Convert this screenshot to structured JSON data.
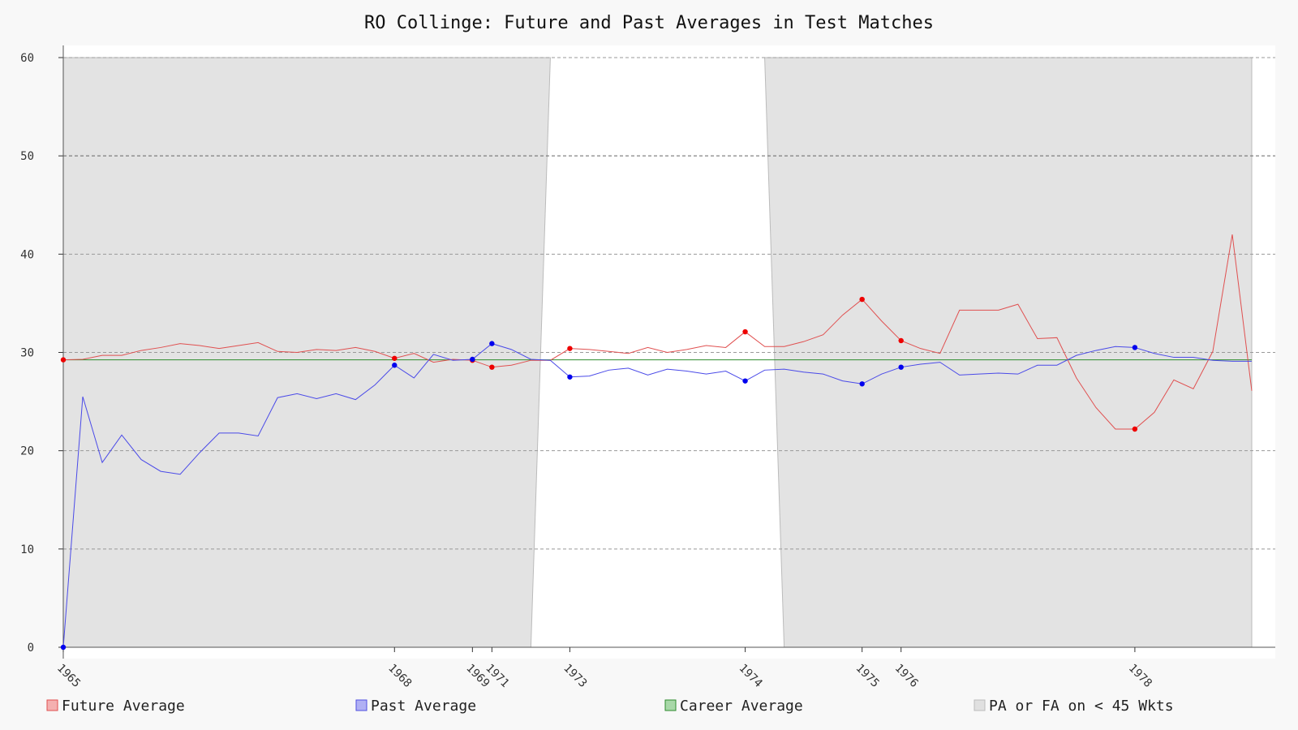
{
  "colors": {
    "future": "#e05050",
    "future_marker": "#ee0000",
    "past": "#4a4ae8",
    "past_marker": "#0000ee",
    "career": "#2e8b2e",
    "shade": "#e3e3e3",
    "background": "#f8f8f8",
    "plot_background": "#ffffff"
  },
  "chart_data": {
    "type": "line",
    "title": "RO Collinge: Future and Past Averages in Test Matches",
    "xlabel": "",
    "ylabel": "",
    "ylim": [
      0,
      60
    ],
    "xlim": [
      0,
      61
    ],
    "yticks": [
      0,
      10,
      20,
      30,
      40,
      50,
      60
    ],
    "grid": true,
    "legend_position": "bottom",
    "x_ticks": [
      {
        "x": 0,
        "label": "1965"
      },
      {
        "x": 17,
        "label": "1968"
      },
      {
        "x": 21,
        "label": "1969"
      },
      {
        "x": 22,
        "label": "1971"
      },
      {
        "x": 26,
        "label": "1973"
      },
      {
        "x": 35,
        "label": "1974"
      },
      {
        "x": 41,
        "label": "1975"
      },
      {
        "x": 43,
        "label": "1976"
      },
      {
        "x": 55,
        "label": "1978"
      }
    ],
    "legend": [
      {
        "key": "future",
        "label": "Future Average"
      },
      {
        "key": "past",
        "label": "Past Average"
      },
      {
        "key": "career",
        "label": "Career Average"
      },
      {
        "key": "shade",
        "label": "PA or FA on < 45 Wkts"
      }
    ],
    "career_average": 29.25,
    "series": [
      {
        "key": "future",
        "name": "Future Average",
        "values": [
          29.25,
          29.3,
          29.7,
          29.7,
          30.2,
          30.5,
          30.9,
          30.7,
          30.4,
          30.7,
          31.0,
          30.1,
          30.0,
          30.3,
          30.2,
          30.5,
          30.1,
          29.4,
          29.9,
          29.0,
          29.3,
          29.2,
          28.5,
          28.7,
          29.2,
          29.2,
          30.4,
          30.3,
          30.1,
          29.9,
          30.5,
          30.0,
          30.3,
          30.7,
          30.5,
          32.1,
          30.6,
          30.6,
          31.1,
          31.8,
          33.8,
          35.4,
          33.2,
          31.2,
          30.4,
          29.9,
          34.3,
          34.3,
          34.3,
          34.9,
          31.4,
          31.5,
          27.4,
          24.4,
          22.2,
          22.2,
          23.9,
          27.2,
          26.3,
          30.1,
          42.0,
          26.1
        ],
        "markers": [
          0,
          17,
          21,
          22,
          26,
          35,
          41,
          43,
          55
        ]
      },
      {
        "key": "past",
        "name": "Past Average",
        "values": [
          0,
          25.5,
          18.8,
          21.6,
          19.1,
          17.9,
          17.6,
          19.8,
          21.8,
          21.8,
          21.5,
          25.4,
          25.8,
          25.3,
          25.8,
          25.2,
          26.7,
          28.7,
          27.4,
          29.8,
          29.2,
          29.3,
          30.9,
          30.3,
          29.3,
          29.2,
          27.5,
          27.6,
          28.2,
          28.4,
          27.7,
          28.3,
          28.1,
          27.8,
          28.1,
          27.1,
          28.2,
          28.3,
          28.0,
          27.8,
          27.1,
          26.8,
          27.8,
          28.5,
          28.8,
          29.0,
          27.7,
          27.8,
          27.9,
          27.8,
          28.7,
          28.7,
          29.7,
          30.2,
          30.6,
          30.5,
          29.9,
          29.5,
          29.5,
          29.2,
          29.1,
          29.1
        ],
        "markers": [
          0,
          17,
          21,
          22,
          26,
          35,
          41,
          43,
          55
        ]
      }
    ],
    "shaded_band": {
      "x_top": [
        0,
        0,
        0,
        0,
        0,
        0,
        0,
        0,
        0,
        0,
        0,
        0,
        0,
        0,
        0,
        0,
        0,
        0,
        0,
        0,
        0,
        0,
        0,
        0,
        0,
        25,
        36,
        61
      ],
      "x_bottom": [
        0,
        24,
        37,
        61
      ],
      "note": ""
    }
  }
}
